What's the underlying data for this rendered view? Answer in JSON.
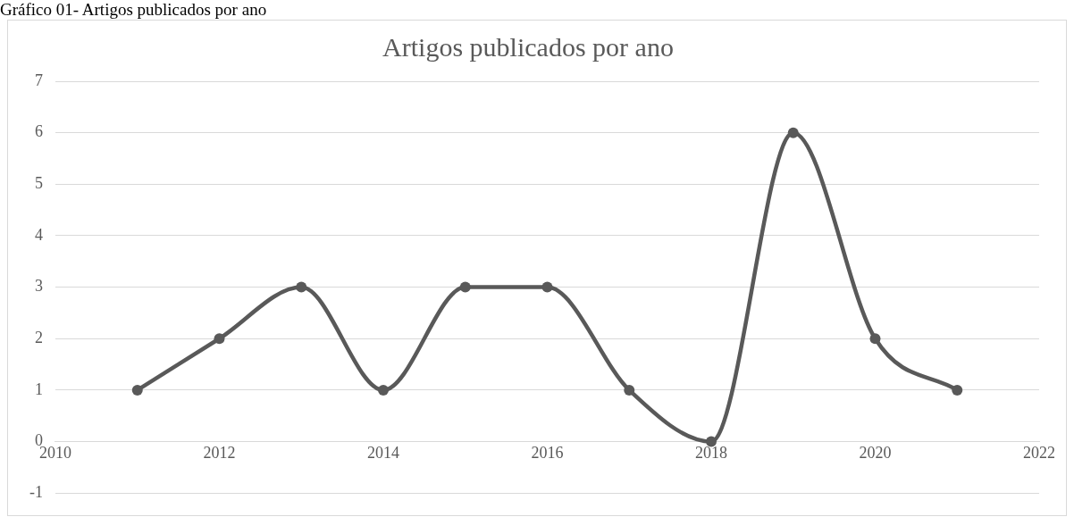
{
  "chart_data": {
    "type": "line",
    "title": "Artigos publicados por ano",
    "annotations": [
      "Gráfico 01- Artigos publicados por ano"
    ],
    "x": [
      2011,
      2012,
      2013,
      2014,
      2015,
      2016,
      2017,
      2018,
      2019,
      2020,
      2021
    ],
    "values": [
      1,
      2,
      3,
      1,
      3,
      3,
      1,
      0,
      6,
      2,
      1
    ],
    "color": "#595959",
    "xlim": [
      2010,
      2022
    ],
    "xticks": [
      2010,
      2012,
      2014,
      2016,
      2018,
      2020,
      2022
    ],
    "ylim": [
      -1,
      7
    ],
    "yticks": [
      -1,
      0,
      1,
      2,
      3,
      4,
      5,
      6,
      7
    ],
    "grid": "y",
    "marker": "circle",
    "line_style": "solid"
  }
}
